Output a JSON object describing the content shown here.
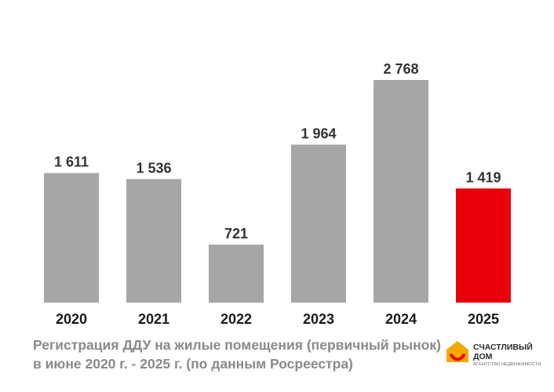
{
  "chart_data": {
    "type": "bar",
    "categories": [
      "2020",
      "2021",
      "2022",
      "2023",
      "2024",
      "2025"
    ],
    "values": [
      1611,
      1536,
      721,
      1964,
      2768,
      1419
    ],
    "value_labels": [
      "1 611",
      "1 536",
      "721",
      "1 964",
      "2 768",
      "1 419"
    ],
    "ylim": [
      0,
      2768
    ],
    "grid": false,
    "colors": {
      "default_bar": "#a6a6a6",
      "highlight_bar": "#e8000b",
      "highlight_category": "2025"
    }
  },
  "caption": {
    "line1": "Регистрация ДДУ на жилые помещения (первичный рынок)",
    "line2": "в июне 2020 г. - 2025 г. (по данным Росреестра)"
  },
  "logo": {
    "name_line1": "СЧАСТЛИВЫЙ",
    "name_line2": "ДОМ",
    "tagline": "АГЕНТСТВО НЕДВИЖИМОСТИ",
    "colors": {
      "house": "#f5a800",
      "smile": "#e8000b"
    }
  }
}
